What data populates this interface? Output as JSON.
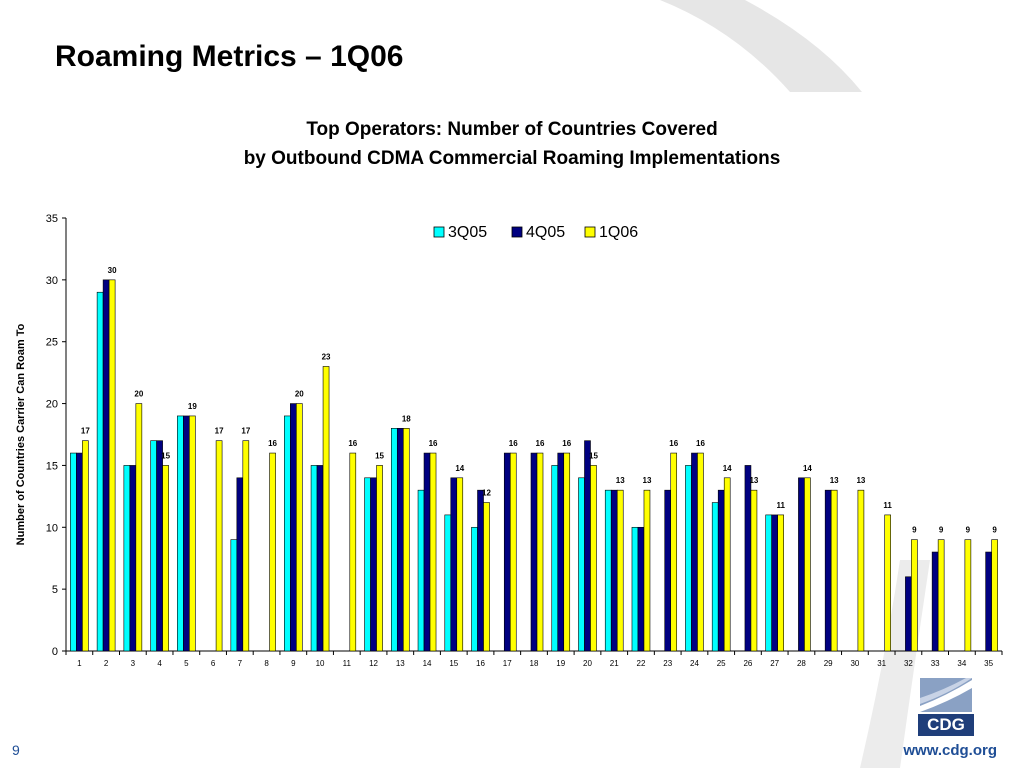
{
  "slide": {
    "title": "Roaming Metrics – 1Q06",
    "page_number": "9",
    "website": "www.cdg.org",
    "logo_text": "CDG"
  },
  "colors": {
    "3Q05": "#00ffff",
    "4Q05": "#000080",
    "1Q06": "#ffff00",
    "brand": "#1f4e96"
  },
  "chart_data": {
    "type": "bar",
    "title": "Top Operators: Number of Countries Covered",
    "subtitle": "by Outbound CDMA Commercial Roaming Implementations",
    "xlabel": "",
    "ylabel": "Number of Countries Carrier Can Roam To",
    "ylim": [
      0,
      35
    ],
    "yticks": [
      0,
      5,
      10,
      15,
      20,
      25,
      30,
      35
    ],
    "grid": false,
    "legend": "top-right",
    "categories": [
      "1",
      "2",
      "3",
      "4",
      "5",
      "6",
      "7",
      "8",
      "9",
      "10",
      "11",
      "12",
      "13",
      "14",
      "15",
      "16",
      "17",
      "18",
      "19",
      "20",
      "21",
      "22",
      "23",
      "24",
      "25",
      "26",
      "27",
      "28",
      "29",
      "30",
      "31",
      "32",
      "33",
      "34",
      "35"
    ],
    "series": [
      {
        "name": "3Q05",
        "values": [
          16,
          29,
          15,
          17,
          19,
          null,
          9,
          null,
          19,
          15,
          null,
          14,
          18,
          13,
          11,
          10,
          null,
          null,
          15,
          14,
          13,
          10,
          null,
          15,
          12,
          null,
          11,
          null,
          null,
          null,
          null,
          null,
          null,
          null,
          null
        ]
      },
      {
        "name": "4Q05",
        "values": [
          16,
          30,
          15,
          17,
          19,
          null,
          14,
          null,
          20,
          15,
          null,
          14,
          18,
          16,
          14,
          13,
          16,
          16,
          16,
          17,
          13,
          10,
          13,
          16,
          13,
          15,
          11,
          14,
          13,
          null,
          null,
          6,
          8,
          null,
          8
        ]
      },
      {
        "name": "1Q06",
        "values": [
          17,
          30,
          20,
          15,
          19,
          17,
          17,
          16,
          20,
          23,
          16,
          15,
          18,
          16,
          14,
          12,
          16,
          16,
          16,
          15,
          13,
          13,
          16,
          16,
          14,
          13,
          11,
          14,
          13,
          13,
          11,
          9,
          9,
          9,
          9
        ]
      }
    ],
    "data_labels": [
      "17",
      "30",
      "20",
      "15",
      "19",
      "17",
      "17",
      "16",
      "20",
      "23",
      "16",
      "15",
      "18",
      "16",
      "14",
      "12",
      "16",
      "16",
      "16",
      "15",
      "13",
      "13",
      "16",
      "16",
      "14",
      "13",
      "11",
      "14",
      "13",
      "13",
      "11",
      "9",
      "9",
      "9",
      "9"
    ]
  }
}
